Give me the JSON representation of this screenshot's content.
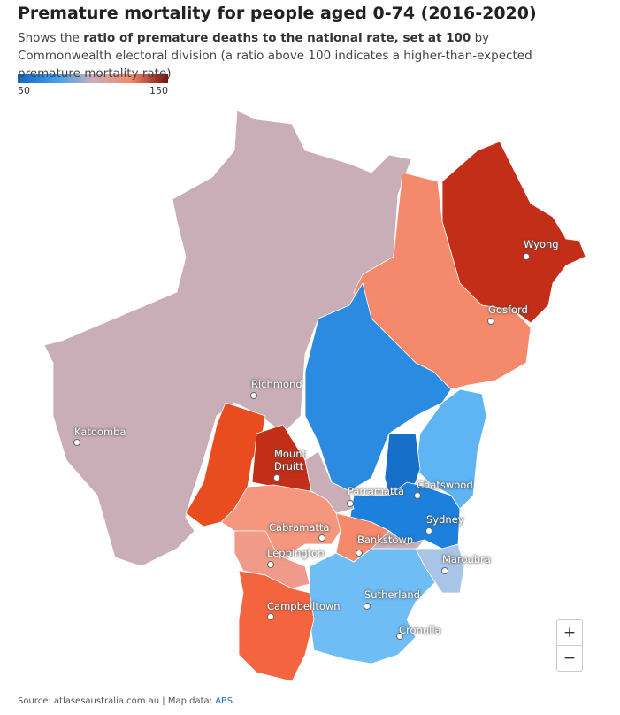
{
  "header": {
    "title": "Premature mortality for people aged 0-74 (2016-2020)",
    "subtitle_parts": [
      "Shows the ",
      "ratio of premature deaths to the national rate, set at 100",
      " by Commonwealth electoral division (a ratio above 100 indicates a higher-than-expected premature mortality rate)"
    ]
  },
  "legend": {
    "min": 50,
    "max": 150,
    "colors": [
      "#1565c0",
      "#3d9ff0",
      "#c9aeb8",
      "#f4896b",
      "#7a1010"
    ]
  },
  "places": [
    "Wyong",
    "Gosford",
    "Richmond",
    "Katoomba",
    "Mount Druitt",
    "Parramatta",
    "Chatswood",
    "Sydney",
    "Cabramatta",
    "Bankstown",
    "Leppington",
    "Maroubra",
    "Sutherland",
    "Campbelltown",
    "Cronulla"
  ],
  "zoom": {
    "in": "+",
    "out": "−"
  },
  "footer": {
    "source": "Source: atlasesaustralia.com.au | Map data: ",
    "link": "ABS"
  }
}
